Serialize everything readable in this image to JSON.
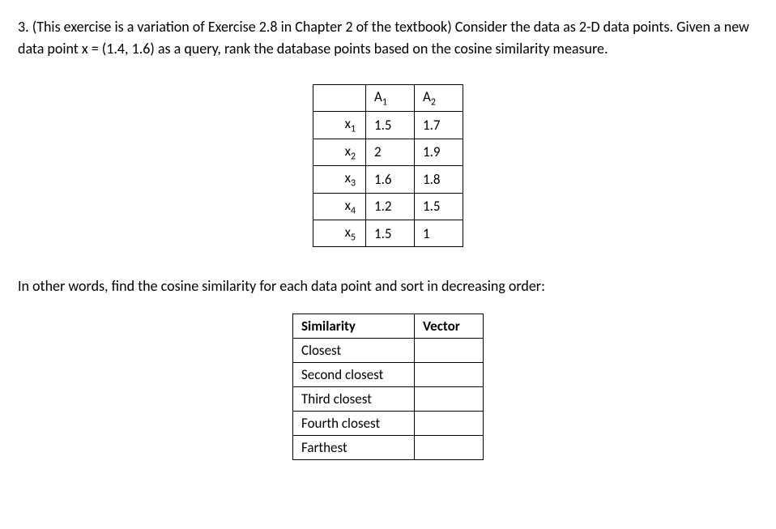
{
  "question": {
    "number": "3.",
    "text_part1": "(This exercise is a variation of Exercise 2.8 in Chapter 2 of the textbook) Consider the data as 2-D data points. Given a new data point x = (1.4, 1.6) as a query, rank the database points based on the cosine similarity measure."
  },
  "data_table": {
    "col_headers": [
      "A",
      "A"
    ],
    "col_subs": [
      "1",
      "2"
    ],
    "rows": [
      {
        "label": "x",
        "sub": "1",
        "vals": [
          "1.5",
          "1.7"
        ]
      },
      {
        "label": "x",
        "sub": "2",
        "vals": [
          "2",
          "1.9"
        ]
      },
      {
        "label": "x",
        "sub": "3",
        "vals": [
          "1.6",
          "1.8"
        ]
      },
      {
        "label": "x",
        "sub": "4",
        "vals": [
          "1.2",
          "1.5"
        ]
      },
      {
        "label": "x",
        "sub": "5",
        "vals": [
          "1.5",
          "1"
        ]
      }
    ]
  },
  "instruction": "In other words, find the cosine similarity for each data point and sort in decreasing order:",
  "answer_table": {
    "header_sim": "Similarity",
    "header_vec": "Vector",
    "rows": [
      "Closest",
      "Second closest",
      "Third closest",
      "Fourth closest",
      "Farthest"
    ]
  },
  "styling": {
    "font_family": "Calibri, Arial, sans-serif",
    "font_size_body": 18,
    "font_size_table": 17,
    "text_color": "#000000",
    "background_color": "#ffffff",
    "border_color": "#000000",
    "border_width": 1
  }
}
